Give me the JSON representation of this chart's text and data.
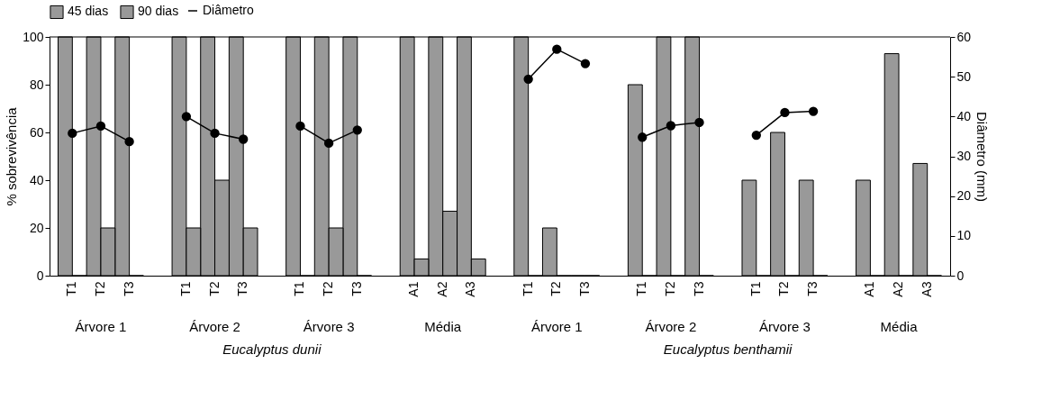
{
  "chart_data": {
    "type": "bar",
    "categories": [
      "T1",
      "T2",
      "T3",
      null,
      "T1",
      "T2",
      "T3",
      null,
      "T1",
      "T2",
      "T3",
      null,
      "A1",
      "A2",
      "A3",
      null,
      "T1",
      "T2",
      "T3",
      null,
      "T1",
      "T2",
      "T3",
      null,
      "T1",
      "T2",
      "T3",
      null,
      "A1",
      "A2",
      "A3"
    ],
    "series": [
      {
        "name": "45 dias",
        "color": "#999999",
        "values": [
          100,
          100,
          100,
          null,
          100,
          100,
          100,
          null,
          100,
          100,
          100,
          null,
          100,
          100,
          100,
          null,
          100,
          20,
          0,
          null,
          80,
          100,
          100,
          null,
          40,
          60,
          40,
          null,
          40,
          93,
          47
        ]
      },
      {
        "name": "90 dias",
        "color": "#999999",
        "values": [
          0,
          20,
          0,
          null,
          20,
          40,
          20,
          null,
          0,
          20,
          0,
          null,
          7,
          27,
          7,
          null,
          0,
          0,
          0,
          null,
          0,
          0,
          0,
          null,
          0,
          0,
          0,
          null,
          0,
          0,
          0
        ]
      },
      {
        "name": "Diâmetro",
        "type": "line",
        "axis": "y2",
        "color": "#000000",
        "marker": "circle",
        "values": [
          35.8,
          37.6,
          33.7,
          null,
          40.0,
          35.8,
          34.3,
          null,
          37.6,
          33.3,
          36.6,
          null,
          null,
          null,
          null,
          null,
          49.4,
          56.9,
          53.3,
          null,
          34.8,
          37.7,
          38.5,
          null,
          35.3,
          41.0,
          41.3,
          null,
          null,
          null,
          null
        ]
      }
    ],
    "ylabel": "% sobrevivência",
    "y2label": "Diâmetro (mm)",
    "ylim": [
      0,
      100
    ],
    "yticks": [
      0,
      20,
      40,
      60,
      80,
      100
    ],
    "y2lim": [
      0,
      60
    ],
    "y2ticks": [
      0,
      10,
      20,
      30,
      40,
      50,
      60
    ],
    "annotations": [
      "Árvore 1",
      "Árvore 2",
      "Árvore 3",
      "Média",
      "Árvore 1",
      "Árvore 2",
      "Árvore 3",
      "Média",
      "Eucalyptus dunii",
      "Eucalyptus benthamii"
    ],
    "grid": false,
    "legend": "top"
  }
}
